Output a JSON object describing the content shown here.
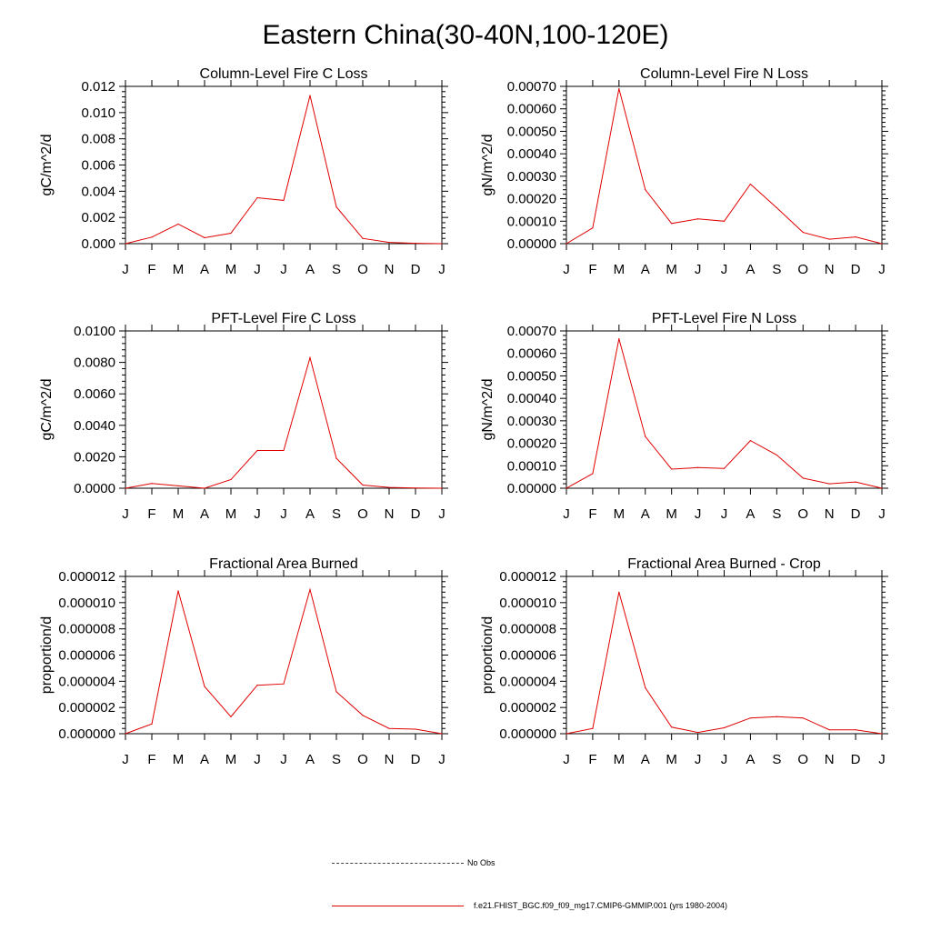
{
  "main_title": "Eastern China(30-40N,100-120E)",
  "months": [
    "J",
    "F",
    "M",
    "A",
    "M",
    "J",
    "J",
    "A",
    "S",
    "O",
    "N",
    "D",
    "J"
  ],
  "line_color": "#e00000",
  "legend": {
    "no_obs": "No Obs",
    "model": "f.e21.FHIST_BGC.f09_f09_mg17.CMIP6-GMMIP.001 (yrs 1980-2004)"
  },
  "chart_data": [
    {
      "type": "line",
      "title": "Column-Level Fire C Loss",
      "ylabel": "gC/m^2/d",
      "ylim": [
        0,
        0.012
      ],
      "yticks": [
        "0.000",
        "0.002",
        "0.004",
        "0.006",
        "0.008",
        "0.010",
        "0.012"
      ],
      "series": [
        {
          "values": [
            0.0,
            0.0005,
            0.0015,
            0.00045,
            0.0008,
            0.0035,
            0.0033,
            0.0113,
            0.0028,
            0.0004,
            0.0001,
            3e-05,
            0.0
          ]
        }
      ]
    },
    {
      "type": "line",
      "title": "Column-Level Fire N Loss",
      "ylabel": "gN/m^2/d",
      "ylim": [
        0,
        0.0007
      ],
      "yticks": [
        "0.00000",
        "0.00010",
        "0.00020",
        "0.00030",
        "0.00040",
        "0.00050",
        "0.00060",
        "0.00070"
      ],
      "series": [
        {
          "values": [
            0.0,
            7e-05,
            0.00069,
            0.00024,
            9e-05,
            0.00011,
            0.0001,
            0.000265,
            0.00016,
            5e-05,
            2e-05,
            3e-05,
            0.0
          ]
        }
      ]
    },
    {
      "type": "line",
      "title": "PFT-Level Fire C Loss",
      "ylabel": "gC/m^2/d",
      "ylim": [
        0,
        0.01
      ],
      "yticks": [
        "0.0000",
        "0.0020",
        "0.0040",
        "0.0060",
        "0.0080",
        "0.0100"
      ],
      "series": [
        {
          "values": [
            0.0,
            0.0003,
            0.00015,
            0.0,
            0.00055,
            0.0024,
            0.0024,
            0.0083,
            0.0019,
            0.0002,
            5e-05,
            1e-05,
            0.0
          ]
        }
      ]
    },
    {
      "type": "line",
      "title": "PFT-Level Fire N Loss",
      "ylabel": "gN/m^2/d",
      "ylim": [
        0,
        0.0007
      ],
      "yticks": [
        "0.00000",
        "0.00010",
        "0.00020",
        "0.00030",
        "0.00040",
        "0.00050",
        "0.00060",
        "0.00070"
      ],
      "series": [
        {
          "values": [
            0.0,
            6.5e-05,
            0.000665,
            0.00023,
            8.5e-05,
            9.2e-05,
            8.8e-05,
            0.000212,
            0.000148,
            4.5e-05,
            2e-05,
            2.8e-05,
            0.0
          ]
        }
      ]
    },
    {
      "type": "line",
      "title": "Fractional Area Burned",
      "ylabel": "proportion/d",
      "ylim": [
        0,
        1.2e-05
      ],
      "yticks": [
        "0.000000",
        "0.000002",
        "0.000004",
        "0.000006",
        "0.000008",
        "0.000010",
        "0.000012"
      ],
      "series": [
        {
          "values": [
            0.0,
            7.5e-07,
            1.09e-05,
            3.6e-06,
            1.3e-06,
            3.7e-06,
            3.8e-06,
            1.1e-05,
            3.2e-06,
            1.4e-06,
            4e-07,
            3.5e-07,
            0.0
          ]
        }
      ]
    },
    {
      "type": "line",
      "title": "Fractional Area Burned - Crop",
      "ylabel": "proportion/d",
      "ylim": [
        0,
        1.2e-05
      ],
      "yticks": [
        "0.000000",
        "0.000002",
        "0.000004",
        "0.000006",
        "0.000008",
        "0.000010",
        "0.000012"
      ],
      "series": [
        {
          "values": [
            0.0,
            4e-07,
            1.08e-05,
            3.5e-06,
            5e-07,
            1e-07,
            4.5e-07,
            1.2e-06,
            1.3e-06,
            1.2e-06,
            3e-07,
            3e-07,
            0.0
          ]
        }
      ]
    }
  ]
}
